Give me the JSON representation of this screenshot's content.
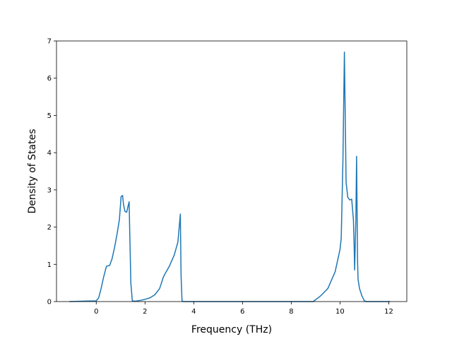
{
  "chart_data": {
    "type": "line",
    "title": "",
    "xlabel": "Frequency (THz)",
    "ylabel": "Density of States",
    "xlim": [
      -1.63,
      12.74
    ],
    "ylim": [
      0,
      7
    ],
    "xticks": [
      0,
      2,
      4,
      6,
      8,
      10,
      12
    ],
    "yticks": [
      0,
      1,
      2,
      3,
      4,
      5,
      6,
      7
    ],
    "grid": false,
    "line_color": "#1f77b4",
    "series": [
      {
        "x": [
          -1.1,
          0.0,
          0.1,
          0.2,
          0.3,
          0.42,
          0.55,
          0.65,
          0.75,
          0.85,
          0.95,
          1.02,
          1.08,
          1.12,
          1.18,
          1.25,
          1.3,
          1.35,
          1.37,
          1.42,
          1.48,
          1.6,
          1.8,
          2.0,
          2.2,
          2.4,
          2.6,
          2.75,
          2.8,
          3.0,
          3.2,
          3.35,
          3.45,
          3.48,
          3.52,
          3.6,
          8.9,
          9.2,
          9.5,
          9.8,
          10.0,
          10.05,
          10.12,
          10.18,
          10.25,
          10.32,
          10.4,
          10.48,
          10.55,
          10.58,
          10.6,
          10.65,
          10.68,
          10.72,
          10.74,
          10.8,
          10.9,
          11.0,
          11.08,
          11.2,
          12.05
        ],
        "y": [
          0.0,
          0.02,
          0.1,
          0.35,
          0.65,
          0.95,
          0.97,
          1.15,
          1.45,
          1.8,
          2.2,
          2.82,
          2.85,
          2.6,
          2.42,
          2.4,
          2.55,
          2.68,
          2.0,
          0.5,
          0.02,
          0.01,
          0.03,
          0.06,
          0.1,
          0.18,
          0.35,
          0.65,
          0.72,
          0.95,
          1.25,
          1.6,
          2.35,
          0.7,
          0.01,
          0.0,
          0.0,
          0.15,
          0.35,
          0.8,
          1.4,
          1.7,
          3.8,
          6.7,
          3.2,
          2.8,
          2.73,
          2.75,
          2.2,
          1.5,
          0.85,
          2.2,
          3.9,
          1.1,
          0.6,
          0.35,
          0.15,
          0.02,
          0.0,
          0.0,
          0.0
        ]
      }
    ]
  }
}
